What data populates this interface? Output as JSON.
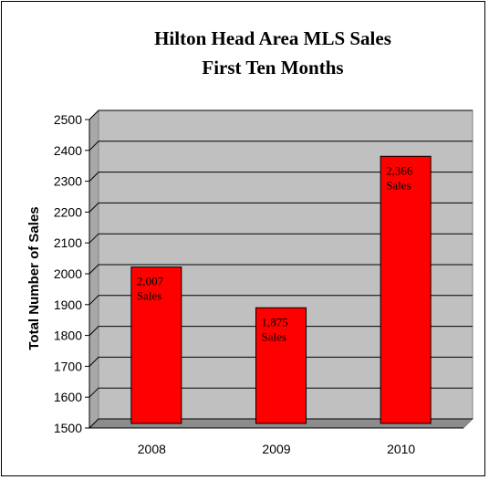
{
  "chart_data": {
    "type": "bar",
    "title": [
      "Hilton Head Area MLS Sales",
      "First Ten Months"
    ],
    "xlabel": "",
    "ylabel": "Total Number of Sales",
    "categories": [
      "2008",
      "2009",
      "2010"
    ],
    "values": [
      2007,
      1875,
      2366
    ],
    "data_labels": [
      [
        "2,007",
        "Sales"
      ],
      [
        "1,875",
        "Sales"
      ],
      [
        "2,366",
        "Sales"
      ]
    ],
    "ylim": [
      1500,
      2500
    ],
    "yticks": [
      1500,
      1600,
      1700,
      1800,
      1900,
      2000,
      2100,
      2200,
      2300,
      2400,
      2500
    ],
    "grid": true,
    "legend": "none",
    "colors": {
      "bar": "#ff0000",
      "bar_border": "#000000",
      "plot_background": "#c0c0c0",
      "gridline": "#000000"
    }
  }
}
